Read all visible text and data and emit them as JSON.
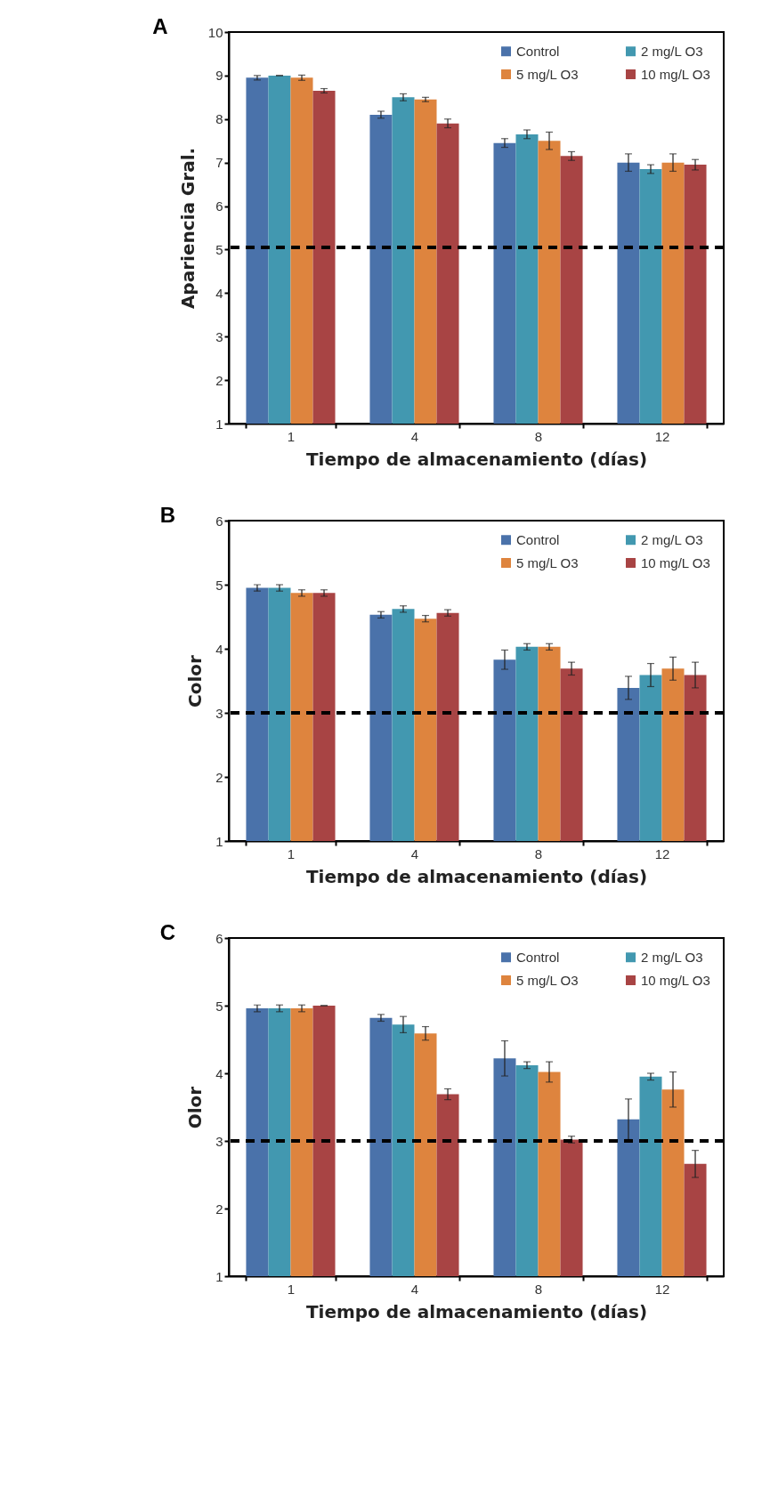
{
  "chart_data": [
    {
      "type": "bar",
      "title": "A",
      "xlabel": "Tiempo de almacenamiento (días)",
      "ylabel": "Apariencia Gral.",
      "categories": [
        "1",
        "4",
        "8",
        "12"
      ],
      "ylim": [
        1,
        10
      ],
      "yticks": [
        1,
        2,
        3,
        4,
        5,
        6,
        7,
        8,
        9,
        10
      ],
      "grid": false,
      "legend": "top right",
      "series": [
        {
          "name": "Control",
          "color": "#4a72aa",
          "values": [
            8.95,
            8.1,
            7.45,
            7.0
          ],
          "errors": [
            0.05,
            0.08,
            0.1,
            0.2
          ]
        },
        {
          "name": "2 mg/L O3",
          "color": "#4298b0",
          "values": [
            9.0,
            8.5,
            7.65,
            6.85
          ],
          "errors": [
            0,
            0.08,
            0.1,
            0.1
          ]
        },
        {
          "name": "5 mg/L O3",
          "color": "#de843e",
          "values": [
            8.95,
            8.45,
            7.5,
            7.0
          ],
          "errors": [
            0.06,
            0.05,
            0.2,
            0.2
          ]
        },
        {
          "name": "10 mg/L O3",
          "color": "#a84444",
          "values": [
            8.65,
            7.9,
            7.15,
            6.95
          ],
          "errors": [
            0.05,
            0.1,
            0.1,
            0.12
          ]
        }
      ],
      "ref_lines": [
        {
          "axis": "y",
          "value": 5.05,
          "color": "#000000",
          "line_style": "dashed"
        }
      ]
    },
    {
      "type": "bar",
      "title": "B",
      "xlabel": "Tiempo de almacenamiento (días)",
      "ylabel": "Color",
      "categories": [
        "1",
        "4",
        "8",
        "12"
      ],
      "ylim": [
        1,
        6
      ],
      "yticks": [
        1,
        2,
        3,
        4,
        5,
        6
      ],
      "grid": false,
      "legend": "top right",
      "series": [
        {
          "name": "Control",
          "color": "#4a72aa",
          "values": [
            4.95,
            4.53,
            3.83,
            3.39
          ],
          "errors": [
            0.05,
            0.05,
            0.15,
            0.18
          ]
        },
        {
          "name": "2 mg/L O3",
          "color": "#4298b0",
          "values": [
            4.95,
            4.62,
            4.03,
            3.59
          ],
          "errors": [
            0.05,
            0.05,
            0.05,
            0.18
          ]
        },
        {
          "name": "5 mg/L O3",
          "color": "#de843e",
          "values": [
            4.87,
            4.47,
            4.03,
            3.69
          ],
          "errors": [
            0.05,
            0.05,
            0.05,
            0.18
          ]
        },
        {
          "name": "10 mg/L O3",
          "color": "#a84444",
          "values": [
            4.87,
            4.56,
            3.69,
            3.59
          ],
          "errors": [
            0.05,
            0.05,
            0.1,
            0.2
          ]
        }
      ],
      "ref_lines": [
        {
          "axis": "y",
          "value": 3,
          "color": "#000000",
          "line_style": "dashed"
        }
      ]
    },
    {
      "type": "bar",
      "title": "C",
      "xlabel": "Tiempo de almacenamiento (días)",
      "ylabel": "Olor",
      "categories": [
        "1",
        "4",
        "8",
        "12"
      ],
      "ylim": [
        1,
        6
      ],
      "yticks": [
        1,
        2,
        3,
        4,
        5,
        6
      ],
      "grid": false,
      "legend": "top right",
      "series": [
        {
          "name": "Control",
          "color": "#4a72aa",
          "values": [
            4.96,
            4.82,
            4.22,
            3.32
          ],
          "errors": [
            0.05,
            0.05,
            0.26,
            0.3
          ]
        },
        {
          "name": "2 mg/L O3",
          "color": "#4298b0",
          "values": [
            4.96,
            4.72,
            4.12,
            3.95
          ],
          "errors": [
            0.05,
            0.12,
            0.05,
            0.05
          ]
        },
        {
          "name": "5 mg/L O3",
          "color": "#de843e",
          "values": [
            4.96,
            4.59,
            4.02,
            3.76
          ],
          "errors": [
            0.05,
            0.1,
            0.15,
            0.26
          ]
        },
        {
          "name": "10 mg/L O3",
          "color": "#a84444",
          "values": [
            5.0,
            3.69,
            3.02,
            2.66
          ],
          "errors": [
            0,
            0.08,
            0.05,
            0.2
          ]
        }
      ],
      "ref_lines": [
        {
          "axis": "y",
          "value": 3,
          "color": "#000000",
          "line_style": "dashed"
        }
      ]
    }
  ]
}
